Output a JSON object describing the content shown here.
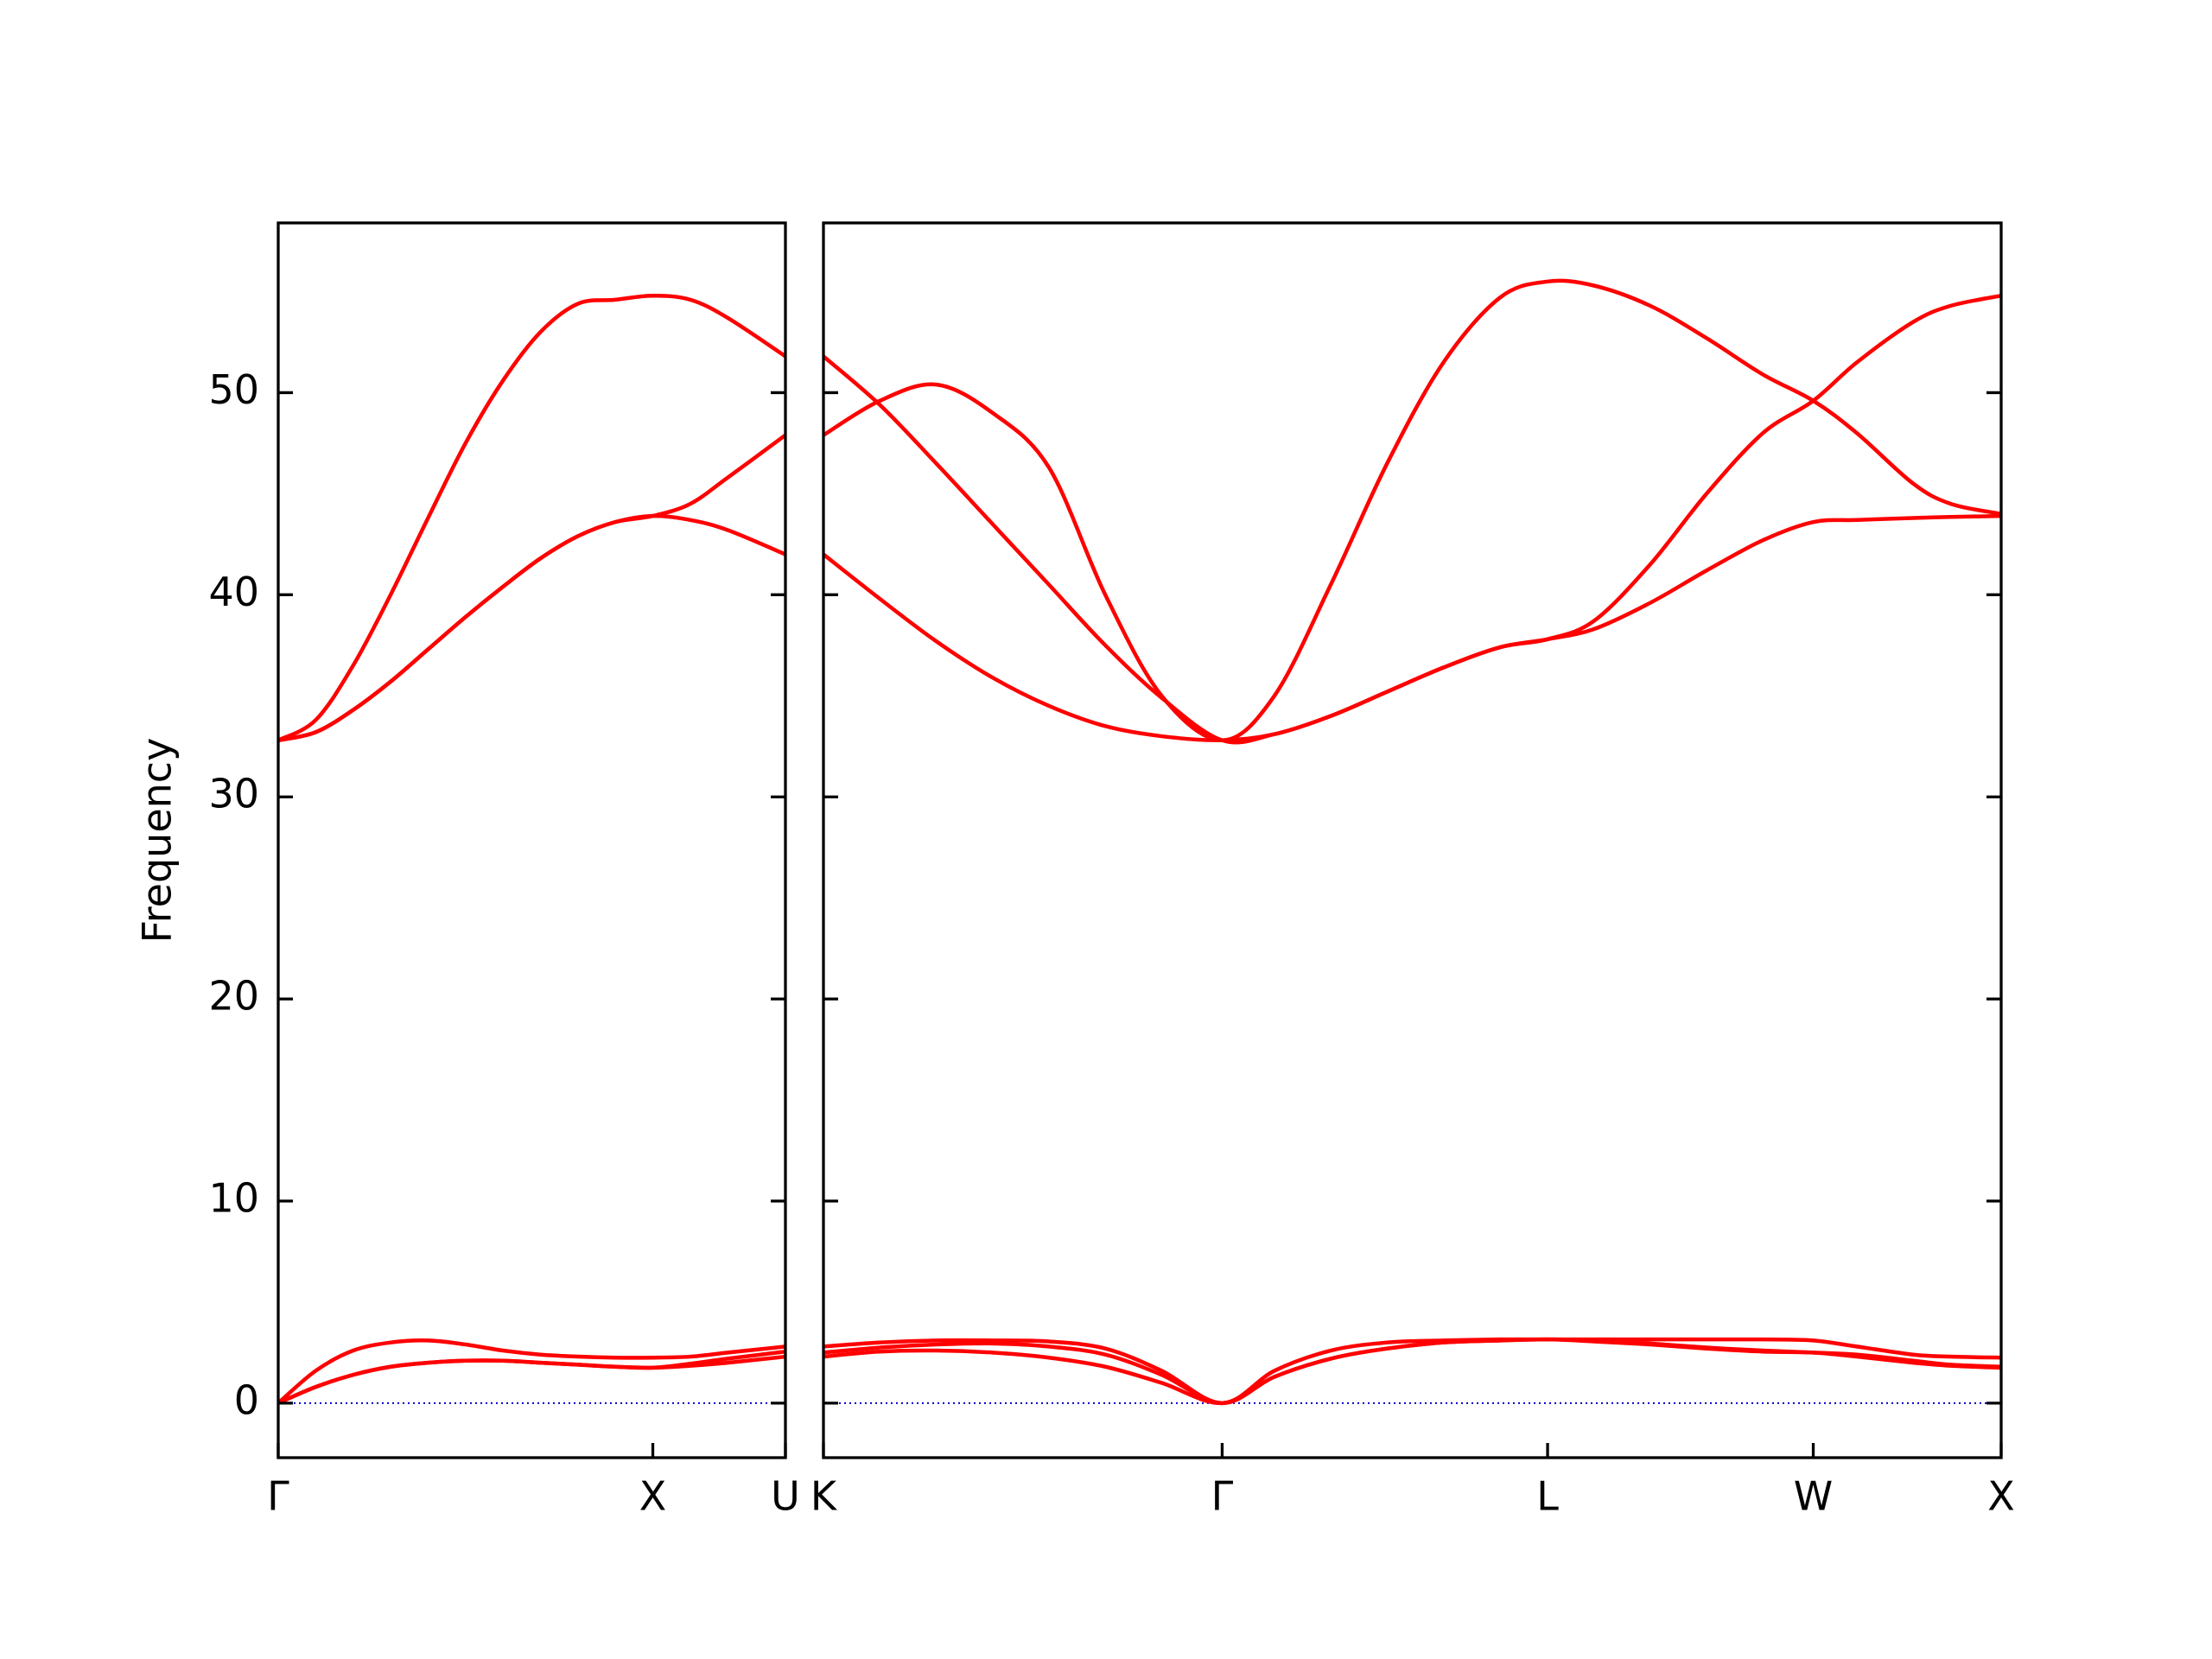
{
  "chart_data": [
    {
      "type": "line",
      "ylabel": "Frequency",
      "x": [
        0,
        0.1,
        0.2,
        0.3,
        0.4,
        0.5,
        0.6,
        0.7,
        0.8,
        0.9,
        1.0,
        1.1,
        1.2,
        1.354
      ],
      "xlim": [
        0,
        1.354
      ],
      "xticks": [
        {
          "value": 0,
          "label": "Γ"
        },
        {
          "value": 1.0,
          "label": "X"
        },
        {
          "value": 1.354,
          "label": "U"
        }
      ],
      "ylim": [
        -2.7,
        58.4
      ],
      "yticks": [
        0,
        10,
        20,
        30,
        40,
        50
      ],
      "ytick_labels": true,
      "hline": 0,
      "hline_color": "#0000cd",
      "series": [
        {
          "color": "#ff0000",
          "values": [
            32.8,
            33.8,
            36.5,
            40.0,
            43.8,
            47.5,
            50.6,
            53.0,
            54.4,
            54.6,
            54.8,
            54.6,
            53.7,
            51.8
          ]
        },
        {
          "color": "#ff0000",
          "values": [
            32.8,
            33.2,
            34.3,
            35.7,
            37.3,
            38.9,
            40.4,
            41.8,
            42.9,
            43.6,
            43.9,
            44.5,
            45.8,
            47.9
          ]
        },
        {
          "color": "#ff0000",
          "values": [
            32.8,
            33.2,
            34.3,
            35.7,
            37.3,
            38.9,
            40.4,
            41.8,
            42.9,
            43.6,
            43.9,
            43.7,
            43.2,
            42.0
          ]
        },
        {
          "color": "#ff0000",
          "values": [
            0,
            1.6,
            2.6,
            3.0,
            3.1,
            2.9,
            2.6,
            2.4,
            2.3,
            2.25,
            2.25,
            2.3,
            2.5,
            2.8
          ]
        },
        {
          "color": "#ff0000",
          "values": [
            0,
            0.8,
            1.4,
            1.8,
            2.0,
            2.1,
            2.1,
            2.0,
            1.9,
            1.8,
            1.75,
            1.95,
            2.2,
            2.55
          ]
        },
        {
          "color": "#ff0000",
          "values": [
            0,
            0.8,
            1.4,
            1.8,
            2.0,
            2.1,
            2.1,
            2.0,
            1.9,
            1.8,
            1.75,
            1.85,
            2.0,
            2.3
          ]
        }
      ]
    },
    {
      "type": "line",
      "x": [
        0,
        0.15,
        0.3,
        0.45,
        0.6,
        0.75,
        0.9,
        1.061,
        1.2,
        1.35,
        1.5,
        1.65,
        1.8,
        1.927,
        2.05,
        2.2,
        2.35,
        2.5,
        2.634,
        2.75,
        2.9,
        3.0,
        3.134
      ],
      "xlim": [
        0,
        3.134
      ],
      "xticks": [
        {
          "value": 0,
          "label": "K"
        },
        {
          "value": 1.061,
          "label": "Γ"
        },
        {
          "value": 1.927,
          "label": "L"
        },
        {
          "value": 2.634,
          "label": "W"
        },
        {
          "value": 3.134,
          "label": "X"
        }
      ],
      "ylim": [
        -2.7,
        58.4
      ],
      "yticks": [
        0,
        10,
        20,
        30,
        40,
        50
      ],
      "ytick_labels": false,
      "hline": 0,
      "hline_color": "#0000cd",
      "series": [
        {
          "color": "#ff0000",
          "values": [
            47.9,
            49.6,
            50.4,
            49.0,
            46.3,
            40.0,
            35.0,
            32.8,
            35.0,
            40.5,
            46.5,
            51.5,
            54.7,
            55.5,
            55.3,
            54.3,
            52.7,
            50.9,
            49.6,
            48.0,
            45.5,
            44.5,
            44.0
          ]
        },
        {
          "color": "#ff0000",
          "values": [
            51.8,
            49.4,
            46.5,
            43.5,
            40.5,
            37.5,
            34.9,
            32.8,
            33.1,
            34.0,
            35.2,
            36.4,
            37.4,
            37.8,
            38.7,
            41.5,
            45.0,
            48.0,
            49.6,
            51.5,
            53.5,
            54.3,
            54.8
          ]
        },
        {
          "color": "#ff0000",
          "values": [
            42.0,
            39.8,
            37.7,
            35.9,
            34.5,
            33.5,
            33.0,
            32.8,
            33.1,
            34.0,
            35.2,
            36.4,
            37.4,
            37.8,
            38.3,
            39.6,
            41.2,
            42.7,
            43.6,
            43.7,
            43.8,
            43.85,
            43.9
          ]
        },
        {
          "color": "#ff0000",
          "values": [
            2.8,
            3.0,
            3.1,
            3.1,
            3.05,
            2.7,
            1.6,
            0,
            1.6,
            2.6,
            3.0,
            3.1,
            3.15,
            3.15,
            3.15,
            3.15,
            3.15,
            3.15,
            3.1,
            2.8,
            2.4,
            2.3,
            2.25
          ]
        },
        {
          "color": "#ff0000",
          "values": [
            2.5,
            2.75,
            2.9,
            2.95,
            2.8,
            2.4,
            1.4,
            0,
            1.3,
            2.2,
            2.7,
            3.0,
            3.1,
            3.15,
            3.05,
            2.9,
            2.7,
            2.55,
            2.5,
            2.3,
            2.0,
            1.85,
            1.75
          ]
        },
        {
          "color": "#ff0000",
          "values": [
            2.3,
            2.55,
            2.6,
            2.5,
            2.25,
            1.8,
            1.0,
            0,
            1.3,
            2.2,
            2.7,
            3.0,
            3.1,
            3.15,
            3.1,
            2.95,
            2.75,
            2.6,
            2.5,
            2.4,
            2.1,
            1.9,
            1.8
          ]
        }
      ]
    }
  ]
}
